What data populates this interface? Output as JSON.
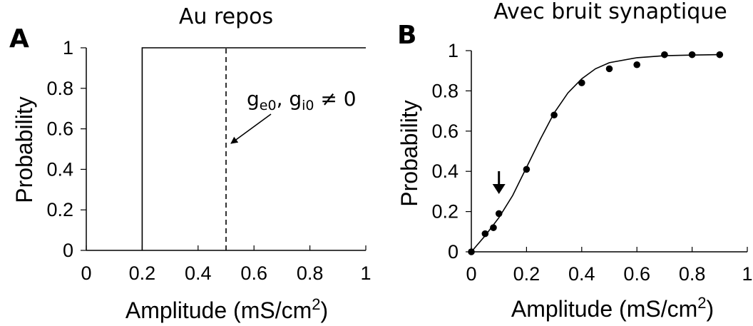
{
  "chart_data": [
    {
      "panel": "A",
      "title": "Au repos",
      "type": "line",
      "xlabel": "Amplitude (mS/cm",
      "xlabel_sup": "2",
      "xlabel_close": ")",
      "ylabel": "Probability",
      "xlim": [
        0,
        1
      ],
      "ylim": [
        0,
        1
      ],
      "xticks": [
        "0",
        "0.2",
        "0.4",
        "0.6",
        "0.8",
        "1"
      ],
      "yticks": [
        "0",
        "0.2",
        "0.4",
        "0.6",
        "0.8",
        "1"
      ],
      "series": [
        {
          "style": "solid",
          "x": [
            0.2,
            0.2,
            1.0
          ],
          "y": [
            0,
            1,
            1
          ]
        },
        {
          "style": "dashed",
          "x": [
            0.5,
            0.5
          ],
          "y": [
            0,
            1
          ]
        }
      ],
      "annotation": {
        "g": "g",
        "e0": "e0",
        "comma": ", g",
        "i0": "i0",
        "rest": " ≠ 0",
        "points_to_x": 0.5,
        "points_to_y": 0.52
      },
      "grid": false
    },
    {
      "panel": "B",
      "title": "Avec bruit synaptique",
      "type": "scatter",
      "xlabel": "Amplitude (mS/cm",
      "xlabel_sup": "2",
      "xlabel_close": ")",
      "ylabel": "Probability",
      "xlim": [
        0,
        1
      ],
      "ylim": [
        0,
        1
      ],
      "xticks": [
        "0",
        "0.2",
        "0.4",
        "0.6",
        "0.8",
        "1"
      ],
      "yticks": [
        "0",
        "0.2",
        "0.4",
        "0.6",
        "0.8",
        "1"
      ],
      "points": {
        "x": [
          0.0,
          0.05,
          0.08,
          0.1,
          0.2,
          0.3,
          0.4,
          0.5,
          0.6,
          0.7,
          0.8,
          0.9
        ],
        "y": [
          0.0,
          0.09,
          0.12,
          0.19,
          0.41,
          0.68,
          0.84,
          0.91,
          0.93,
          0.98,
          0.98,
          0.98
        ]
      },
      "fit_curve": {
        "type": "sigmoid",
        "x": [
          0.0,
          0.05,
          0.1,
          0.15,
          0.2,
          0.25,
          0.3,
          0.35,
          0.4,
          0.45,
          0.5,
          0.6,
          0.7,
          0.8,
          0.9
        ],
        "y": [
          0.0,
          0.08,
          0.17,
          0.28,
          0.42,
          0.56,
          0.69,
          0.79,
          0.86,
          0.91,
          0.94,
          0.965,
          0.975,
          0.978,
          0.98
        ]
      },
      "marker_arrow_x": 0.1,
      "grid": false
    }
  ]
}
